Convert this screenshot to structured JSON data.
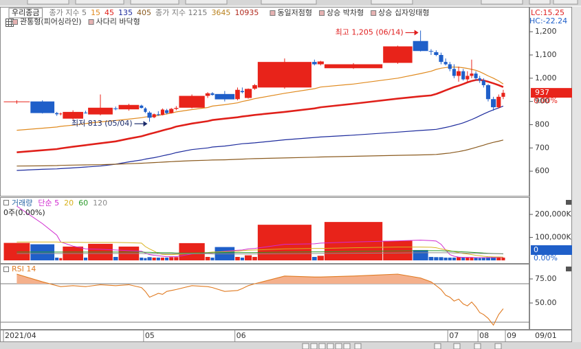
{
  "chart_data": [
    {
      "type": "candlestick",
      "title": "우리종금",
      "legend_prefix": "종가 지수 5",
      "series": [
        {
          "name": "15",
          "color": "#e08a1e",
          "width": 1.2,
          "values": [
            776,
            785,
            790,
            793,
            798,
            805,
            812,
            818,
            824,
            830,
            833,
            835,
            837,
            840,
            843,
            846,
            850,
            855,
            865,
            874,
            880,
            886,
            894,
            900,
            905,
            912,
            935,
            955,
            962,
            975,
            1000,
            1020,
            1030,
            1038,
            1043,
            1046,
            1048,
            1048,
            1047,
            1045,
            1042,
            1038,
            1034,
            1028,
            1020,
            1010,
            1000,
            988,
            975
          ]
        },
        {
          "name": "45",
          "color": "#e0201a",
          "width": 2.6,
          "values": [
            681,
            690,
            695,
            698,
            705,
            712,
            720,
            728,
            740,
            750,
            755,
            760,
            765,
            770,
            775,
            780,
            785,
            792,
            805,
            815,
            820,
            826,
            832,
            835,
            838,
            842,
            855,
            870,
            875,
            890,
            912,
            922,
            926,
            932,
            940,
            948,
            955,
            962,
            968,
            975,
            982,
            988,
            992,
            993,
            990,
            985,
            978,
            970,
            962
          ]
        },
        {
          "name": "135",
          "color": "#1c2a9c",
          "width": 1.2,
          "values": [
            603,
            608,
            610,
            611,
            614,
            618,
            622,
            630,
            640,
            648,
            652,
            655,
            658,
            662,
            666,
            670,
            674,
            680,
            693,
            700,
            704,
            708,
            715,
            718,
            720,
            722,
            735,
            745,
            747,
            755,
            768,
            775,
            778,
            780,
            784,
            788,
            792,
            797,
            802,
            808,
            815,
            822,
            830,
            838,
            846,
            855,
            864,
            872,
            880
          ]
        },
        {
          "name": "405",
          "color": "#8a5a1e",
          "width": 1.2,
          "values": [
            622,
            623,
            624,
            625,
            626,
            627,
            628,
            630,
            632,
            634,
            635,
            636,
            637,
            638,
            639,
            640,
            641,
            642,
            645,
            647,
            648,
            649,
            651,
            652,
            653,
            654,
            657,
            660,
            661,
            664,
            668,
            670,
            671,
            672,
            674,
            676,
            678,
            681,
            684,
            688,
            692,
            697,
            702,
            707,
            712,
            718,
            724,
            729,
            734
          ]
        }
      ],
      "extra_legend": [
        {
          "name": "종가 지수 1215",
          "color": "#777777"
        },
        {
          "name": "3645",
          "color": "#b8801c"
        },
        {
          "name": "10935",
          "color": "#b0281c"
        }
      ],
      "patterns": [
        "동일저점형",
        "상승 박차형",
        "상승 십자잉태형",
        "관통형(피어싱라인)",
        "사다리 바닥형"
      ],
      "lc_label": "LC:15.25",
      "hc_label": "HC:-22.24",
      "open": [
        898,
        900,
        850,
        845,
        826,
        852,
        844,
        870,
        866,
        882,
        870,
        852,
        832,
        845,
        842,
        862,
        850,
        868,
        873,
        924,
        935,
        932,
        910,
        945,
        915,
        955,
        960,
        1070,
        1060,
        1043,
        1066,
        1160,
        1117,
        1112,
        1100,
        1070,
        1060,
        1040,
        1010,
        1030,
        995,
        1010,
        1020,
        1000,
        990,
        970,
        910,
        875,
        920
      ],
      "high": [
        905,
        905,
        855,
        852,
        862,
        860,
        930,
        878,
        890,
        886,
        875,
        858,
        848,
        858,
        870,
        868,
        872,
        880,
        930,
        940,
        940,
        945,
        960,
        960,
        956,
        975,
        1085,
        1080,
        1075,
        1065,
        1140,
        1205,
        1125,
        1120,
        1110,
        1085,
        1070,
        1060,
        1050,
        1040,
        1030,
        1080,
        1030,
        1010,
        1000,
        975,
        920,
        930,
        950
      ],
      "low": [
        890,
        848,
        838,
        840,
        820,
        848,
        840,
        862,
        860,
        870,
        850,
        813,
        828,
        838,
        840,
        845,
        848,
        862,
        870,
        915,
        925,
        900,
        905,
        935,
        912,
        950,
        955,
        1055,
        1055,
        1040,
        1062,
        1115,
        1100,
        1095,
        1060,
        1055,
        1030,
        1000,
        985,
        990,
        980,
        1000,
        990,
        980,
        960,
        900,
        860,
        870,
        910
      ],
      "close": [
        900,
        850,
        845,
        848,
        855,
        850,
        873,
        868,
        885,
        872,
        855,
        830,
        845,
        842,
        865,
        850,
        868,
        872,
        924,
        935,
        928,
        909,
        950,
        940,
        954,
        970,
        1070,
        1060,
        1072,
        1060,
        1137,
        1117,
        1115,
        1100,
        1070,
        1060,
        1040,
        1010,
        1030,
        995,
        1010,
        1020,
        1000,
        990,
        970,
        910,
        875,
        920,
        937
      ],
      "up_color": "#e8231a",
      "down_color": "#1f5fc9",
      "ylim": [
        494,
        1304
      ],
      "yticks": [
        {
          "value": 1200,
          "label": "1,200"
        },
        {
          "value": 1100,
          "label": "1,100"
        },
        {
          "value": 1000,
          "label": "1,000"
        },
        900,
        800,
        700,
        600
      ],
      "last_price": 937,
      "last_change": "0.00%",
      "annotations": [
        "최고 1,205 (06/14)",
        "최저 813 (05/04)"
      ],
      "xticks": [
        {
          "value": 0,
          "label": "2021/04"
        },
        {
          "value": 10,
          "label": "05"
        },
        {
          "value": 22,
          "label": "06"
        },
        {
          "value": 36,
          "label": "07"
        },
        {
          "value": 43,
          "label": "08"
        },
        {
          "value": 49,
          "label": "09"
        }
      ],
      "x_end_label": "09/01"
    },
    {
      "type": "bar",
      "title": "거래량",
      "values": [
        76000,
        70000,
        12000,
        10000,
        60000,
        12000,
        72000,
        15000,
        60000,
        12000,
        10000,
        14000,
        12000,
        12000,
        12000,
        12000,
        14000,
        14000,
        75000,
        15000,
        12000,
        58000,
        15000,
        12000,
        22000,
        15000,
        155000,
        15000,
        20000,
        167000,
        85000,
        45000,
        15000,
        14000,
        14000,
        12000,
        12000,
        12000,
        14000,
        12000,
        12000,
        12000,
        12000,
        10000,
        12000,
        14000,
        16000,
        14000,
        12000
      ],
      "series": [
        {
          "name": "단순 5",
          "color": "#d02bd0",
          "values": [
            236000,
            160000,
            110000,
            80000,
            62000,
            50000,
            48000,
            45000,
            42000,
            40000,
            32000,
            25000,
            22000,
            20000,
            18000,
            16000,
            16000,
            16000,
            28000,
            32000,
            32000,
            40000,
            44000,
            45000,
            50000,
            52000,
            70000,
            72000,
            75000,
            80000,
            85000,
            88000,
            86000,
            84000,
            70000,
            45000,
            25000,
            18000,
            14000,
            13000,
            13000,
            13000,
            12000,
            12000,
            12000,
            12000,
            12000,
            13000,
            13000
          ]
        },
        {
          "name": "20",
          "color": "#d8b21c",
          "values": [
            80000,
            80000,
            80000,
            79000,
            79000,
            78000,
            78000,
            78000,
            77000,
            75000,
            60000,
            50000,
            40000,
            30000,
            26000,
            25000,
            25000,
            26000,
            30000,
            34000,
            36000,
            38000,
            40000,
            42000,
            44000,
            45000,
            50000,
            52000,
            52000,
            55000,
            58000,
            58000,
            57000,
            55000,
            50000,
            46000,
            42000,
            38000,
            34000,
            30000,
            28000,
            25000,
            22000,
            20000,
            18000,
            16000,
            15000,
            15000,
            14000
          ]
        },
        {
          "name": "60",
          "color": "#2a9a2a",
          "values": [
            36000,
            36000,
            36000,
            36000,
            36000,
            36000,
            36000,
            36000,
            36000,
            36000,
            35000,
            35000,
            34000,
            34000,
            33000,
            33000,
            33000,
            32000,
            32000,
            33000,
            33000,
            34000,
            34000,
            34000,
            34000,
            34000,
            36000,
            37000,
            37000,
            39000,
            41000,
            42000,
            42000,
            42000,
            42000,
            41000,
            40000,
            39000,
            38000,
            37000,
            36000,
            35000,
            34000,
            33000,
            32000,
            31000,
            30000,
            29000,
            28000
          ]
        },
        {
          "name": "120",
          "color": "#8c8c8c",
          "values": [
            30000,
            30000,
            30000,
            30000,
            30000,
            30000,
            30000,
            30000,
            30000,
            30000,
            29000,
            29000,
            29000,
            29000,
            29000,
            29000,
            29000,
            29000,
            29000,
            29000,
            28000,
            28000,
            28000,
            28000,
            28000,
            28000,
            29000,
            30000,
            30000,
            31000,
            32000,
            33000,
            33000,
            33000,
            33000,
            33000,
            33000,
            32000,
            32000,
            32000,
            31000,
            31000,
            31000,
            30000,
            30000,
            30000,
            29000,
            29000,
            29000
          ]
        }
      ],
      "status": "0주(0.00%)",
      "ylim": [
        -12000,
        272000
      ],
      "yticks": [
        {
          "value": 200000,
          "label": "200,000K"
        },
        {
          "value": 100000,
          "label": "100,000K"
        }
      ],
      "last_value": 0,
      "last_change": "0.00%"
    },
    {
      "type": "line",
      "title": "RSI 14",
      "color": "#e07a20",
      "fill": "#f4b08c",
      "values": [
        80,
        72,
        68,
        67,
        68,
        67,
        69,
        68,
        69,
        66,
        62,
        56,
        58,
        60,
        59,
        62,
        63,
        64,
        68,
        67,
        66,
        62,
        63,
        65,
        68,
        70,
        78,
        77,
        77,
        78,
        80,
        76,
        72,
        68,
        64,
        58,
        56,
        52,
        54,
        49,
        47,
        51,
        46,
        40,
        38,
        34,
        27,
        38,
        44
      ],
      "ylim": [
        23.6,
        90
      ],
      "yticks": [
        {
          "value": 75,
          "label": "75.00"
        },
        {
          "value": 50,
          "label": "50.00"
        }
      ],
      "levels": [
        70,
        30
      ]
    }
  ]
}
